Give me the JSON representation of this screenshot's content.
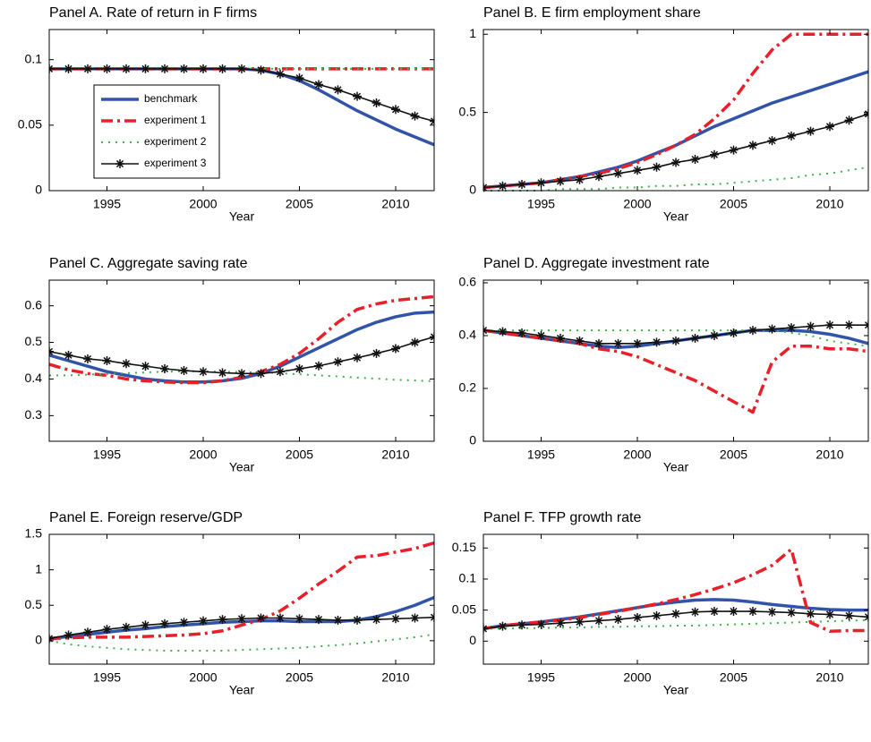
{
  "chart_data": [
    {
      "type": "line",
      "title": "Panel A. Rate of return in F firms",
      "xlabel": "Year",
      "x": [
        1992,
        1993,
        1994,
        1995,
        1996,
        1997,
        1998,
        1999,
        2000,
        2001,
        2002,
        2003,
        2004,
        2005,
        2006,
        2007,
        2008,
        2009,
        2010,
        2011,
        2012
      ],
      "xlim": [
        1992,
        2012
      ],
      "xticks": [
        1995,
        2000,
        2005,
        2010
      ],
      "ylim": [
        0,
        0.123
      ],
      "yticks": [
        0,
        0.05,
        0.1
      ],
      "legend": "west",
      "series": [
        {
          "name": "benchmark",
          "color": "#3153a8",
          "linestyle": "-",
          "values": [
            0.093,
            0.093,
            0.093,
            0.093,
            0.093,
            0.093,
            0.093,
            0.093,
            0.093,
            0.093,
            0.093,
            0.092,
            0.089,
            0.084,
            0.077,
            0.069,
            0.061,
            0.054,
            0.047,
            0.041,
            0.035
          ]
        },
        {
          "name": "experiment 1",
          "color": "#e8202a",
          "linestyle": "-.",
          "values": [
            0.093,
            0.093,
            0.093,
            0.093,
            0.093,
            0.093,
            0.093,
            0.093,
            0.093,
            0.093,
            0.093,
            0.093,
            0.093,
            0.093,
            0.093,
            0.093,
            0.093,
            0.093,
            0.093,
            0.093,
            0.093
          ]
        },
        {
          "name": "experiment 2",
          "color": "#3fb54a",
          "linestyle": ":",
          "values": [
            0.093,
            0.093,
            0.093,
            0.093,
            0.093,
            0.093,
            0.093,
            0.093,
            0.093,
            0.093,
            0.093,
            0.093,
            0.093,
            0.093,
            0.093,
            0.093,
            0.093,
            0.093,
            0.093,
            0.093,
            0.093
          ]
        },
        {
          "name": "experiment 3",
          "color": "#111111",
          "linestyle": "-",
          "marker": "*",
          "values": [
            0.093,
            0.093,
            0.093,
            0.093,
            0.093,
            0.093,
            0.093,
            0.093,
            0.093,
            0.093,
            0.093,
            0.092,
            0.089,
            0.086,
            0.081,
            0.077,
            0.072,
            0.067,
            0.062,
            0.057,
            0.053
          ]
        }
      ]
    },
    {
      "type": "line",
      "title": "Panel B. E firm employment share",
      "xlabel": "Year",
      "x": [
        1992,
        1993,
        1994,
        1995,
        1996,
        1997,
        1998,
        1999,
        2000,
        2001,
        2002,
        2003,
        2004,
        2005,
        2006,
        2007,
        2008,
        2009,
        2010,
        2011,
        2012
      ],
      "xlim": [
        1992,
        2012
      ],
      "xticks": [
        1995,
        2000,
        2005,
        2010
      ],
      "ylim": [
        0,
        1.03
      ],
      "yticks": [
        0,
        0.5,
        1
      ],
      "series": [
        {
          "color": "#3153a8",
          "linestyle": "-",
          "values": [
            0.02,
            0.03,
            0.04,
            0.05,
            0.07,
            0.09,
            0.12,
            0.15,
            0.19,
            0.24,
            0.29,
            0.35,
            0.41,
            0.46,
            0.51,
            0.56,
            0.6,
            0.64,
            0.68,
            0.72,
            0.76
          ]
        },
        {
          "color": "#e8202a",
          "linestyle": "-.",
          "values": [
            0.02,
            0.03,
            0.04,
            0.05,
            0.07,
            0.09,
            0.11,
            0.14,
            0.18,
            0.23,
            0.29,
            0.36,
            0.46,
            0.58,
            0.75,
            0.9,
            1,
            1,
            1,
            1,
            1
          ]
        },
        {
          "color": "#3fb54a",
          "linestyle": ":",
          "values": [
            0,
            0,
            0,
            0,
            0.01,
            0.01,
            0.01,
            0.02,
            0.02,
            0.03,
            0.03,
            0.04,
            0.04,
            0.05,
            0.06,
            0.07,
            0.08,
            0.1,
            0.11,
            0.13,
            0.15
          ]
        },
        {
          "color": "#111111",
          "linestyle": "-",
          "marker": "*",
          "values": [
            0.02,
            0.03,
            0.04,
            0.05,
            0.06,
            0.07,
            0.09,
            0.11,
            0.13,
            0.15,
            0.18,
            0.2,
            0.23,
            0.26,
            0.29,
            0.32,
            0.35,
            0.38,
            0.41,
            0.45,
            0.49
          ]
        }
      ]
    },
    {
      "type": "line",
      "title": "Panel C. Aggregate saving rate",
      "xlabel": "Year",
      "x": [
        1992,
        1993,
        1994,
        1995,
        1996,
        1997,
        1998,
        1999,
        2000,
        2001,
        2002,
        2003,
        2004,
        2005,
        2006,
        2007,
        2008,
        2009,
        2010,
        2011,
        2012
      ],
      "xlim": [
        1992,
        2012
      ],
      "xticks": [
        1995,
        2000,
        2005,
        2010
      ],
      "ylim": [
        0.23,
        0.67
      ],
      "yticks": [
        0.3,
        0.4,
        0.5,
        0.6
      ],
      "series": [
        {
          "color": "#3153a8",
          "linestyle": "-",
          "values": [
            0.465,
            0.45,
            0.435,
            0.42,
            0.41,
            0.4,
            0.395,
            0.392,
            0.392,
            0.395,
            0.402,
            0.415,
            0.435,
            0.46,
            0.485,
            0.51,
            0.535,
            0.555,
            0.57,
            0.58,
            0.583
          ]
        },
        {
          "color": "#e8202a",
          "linestyle": "-.",
          "values": [
            0.44,
            0.425,
            0.415,
            0.41,
            0.4,
            0.395,
            0.392,
            0.39,
            0.39,
            0.395,
            0.405,
            0.42,
            0.44,
            0.47,
            0.51,
            0.555,
            0.59,
            0.605,
            0.615,
            0.62,
            0.625
          ]
        },
        {
          "color": "#3fb54a",
          "linestyle": ":",
          "values": [
            0.41,
            0.41,
            0.412,
            0.414,
            0.416,
            0.418,
            0.42,
            0.421,
            0.421,
            0.42,
            0.419,
            0.418,
            0.416,
            0.413,
            0.41,
            0.407,
            0.404,
            0.401,
            0.398,
            0.396,
            0.394
          ]
        },
        {
          "color": "#111111",
          "linestyle": "-",
          "marker": "*",
          "values": [
            0.475,
            0.465,
            0.455,
            0.45,
            0.442,
            0.435,
            0.428,
            0.423,
            0.42,
            0.417,
            0.415,
            0.415,
            0.42,
            0.428,
            0.436,
            0.447,
            0.458,
            0.47,
            0.483,
            0.5,
            0.515
          ]
        }
      ]
    },
    {
      "type": "line",
      "title": "Panel D. Aggregate investment rate",
      "xlabel": "Year",
      "x": [
        1992,
        1993,
        1994,
        1995,
        1996,
        1997,
        1998,
        1999,
        2000,
        2001,
        2002,
        2003,
        2004,
        2005,
        2006,
        2007,
        2008,
        2009,
        2010,
        2011,
        2012
      ],
      "xlim": [
        1992,
        2012
      ],
      "xticks": [
        1995,
        2000,
        2005,
        2010
      ],
      "ylim": [
        0,
        0.61
      ],
      "yticks": [
        0,
        0.2,
        0.4,
        0.6
      ],
      "series": [
        {
          "color": "#3153a8",
          "linestyle": "-",
          "values": [
            0.42,
            0.41,
            0.4,
            0.39,
            0.38,
            0.37,
            0.36,
            0.355,
            0.36,
            0.37,
            0.38,
            0.39,
            0.4,
            0.41,
            0.42,
            0.42,
            0.42,
            0.415,
            0.405,
            0.39,
            0.37
          ]
        },
        {
          "color": "#e8202a",
          "linestyle": "-.",
          "values": [
            0.42,
            0.41,
            0.4,
            0.39,
            0.38,
            0.37,
            0.35,
            0.34,
            0.32,
            0.29,
            0.26,
            0.23,
            0.19,
            0.15,
            0.11,
            0.3,
            0.36,
            0.36,
            0.35,
            0.35,
            0.34
          ]
        },
        {
          "color": "#3fb54a",
          "linestyle": ":",
          "values": [
            0.42,
            0.42,
            0.42,
            0.42,
            0.42,
            0.42,
            0.42,
            0.42,
            0.42,
            0.42,
            0.42,
            0.42,
            0.42,
            0.42,
            0.42,
            0.42,
            0.41,
            0.4,
            0.38,
            0.37,
            0.36
          ]
        },
        {
          "color": "#111111",
          "linestyle": "-",
          "marker": "*",
          "values": [
            0.42,
            0.415,
            0.41,
            0.4,
            0.39,
            0.38,
            0.37,
            0.37,
            0.37,
            0.375,
            0.38,
            0.39,
            0.4,
            0.41,
            0.42,
            0.425,
            0.43,
            0.435,
            0.44,
            0.44,
            0.44
          ]
        }
      ]
    },
    {
      "type": "line",
      "title": "Panel E. Foreign reserve/GDP",
      "xlabel": "Year",
      "x": [
        1992,
        1993,
        1994,
        1995,
        1996,
        1997,
        1998,
        1999,
        2000,
        2001,
        2002,
        2003,
        2004,
        2005,
        2006,
        2007,
        2008,
        2009,
        2010,
        2011,
        2012
      ],
      "xlim": [
        1992,
        2012
      ],
      "xticks": [
        1995,
        2000,
        2005,
        2010
      ],
      "ylim": [
        -0.33,
        1.5
      ],
      "yticks": [
        0,
        0.5,
        1,
        1.5
      ],
      "series": [
        {
          "color": "#3153a8",
          "linestyle": "-",
          "values": [
            0.03,
            0.06,
            0.09,
            0.12,
            0.15,
            0.17,
            0.2,
            0.22,
            0.24,
            0.26,
            0.27,
            0.28,
            0.28,
            0.27,
            0.27,
            0.27,
            0.29,
            0.34,
            0.41,
            0.5,
            0.61
          ]
        },
        {
          "color": "#e8202a",
          "linestyle": "-.",
          "values": [
            0.03,
            0.04,
            0.05,
            0.05,
            0.05,
            0.06,
            0.07,
            0.08,
            0.1,
            0.14,
            0.22,
            0.3,
            0.42,
            0.6,
            0.8,
            0.98,
            1.18,
            1.2,
            1.25,
            1.3,
            1.38
          ]
        },
        {
          "color": "#3fb54a",
          "linestyle": ":",
          "values": [
            0,
            -0.05,
            -0.08,
            -0.1,
            -0.12,
            -0.13,
            -0.14,
            -0.14,
            -0.14,
            -0.14,
            -0.13,
            -0.12,
            -0.11,
            -0.1,
            -0.08,
            -0.06,
            -0.04,
            -0.01,
            0.02,
            0.05,
            0.09
          ]
        },
        {
          "color": "#111111",
          "linestyle": "-",
          "marker": "*",
          "values": [
            0.03,
            0.08,
            0.12,
            0.16,
            0.19,
            0.22,
            0.24,
            0.26,
            0.28,
            0.3,
            0.31,
            0.32,
            0.32,
            0.31,
            0.3,
            0.29,
            0.29,
            0.3,
            0.31,
            0.32,
            0.33
          ]
        }
      ]
    },
    {
      "type": "line",
      "title": "Panel F. TFP growth rate",
      "xlabel": "Year",
      "x": [
        1992,
        1993,
        1994,
        1995,
        1996,
        1997,
        1998,
        1999,
        2000,
        2001,
        2002,
        2003,
        2004,
        2005,
        2006,
        2007,
        2008,
        2009,
        2010,
        2011,
        2012
      ],
      "xlim": [
        1992,
        2012
      ],
      "xticks": [
        1995,
        2000,
        2005,
        2010
      ],
      "ylim": [
        -0.037,
        0.172
      ],
      "yticks": [
        0,
        0.05,
        0.1,
        0.15
      ],
      "series": [
        {
          "color": "#3153a8",
          "linestyle": "-",
          "values": [
            0.02,
            0.025,
            0.028,
            0.031,
            0.035,
            0.039,
            0.044,
            0.049,
            0.054,
            0.059,
            0.063,
            0.066,
            0.067,
            0.066,
            0.063,
            0.059,
            0.056,
            0.053,
            0.051,
            0.05,
            0.05
          ]
        },
        {
          "color": "#e8202a",
          "linestyle": "-.",
          "values": [
            0.02,
            0.025,
            0.028,
            0.031,
            0.034,
            0.038,
            0.043,
            0.048,
            0.054,
            0.06,
            0.067,
            0.075,
            0.084,
            0.094,
            0.107,
            0.122,
            0.148,
            0.03,
            0.016,
            0.017,
            0.017
          ]
        },
        {
          "color": "#3fb54a",
          "linestyle": ":",
          "values": [
            0.02,
            0.02,
            0.021,
            0.021,
            0.022,
            0.022,
            0.023,
            0.023,
            0.024,
            0.024,
            0.025,
            0.025,
            0.026,
            0.027,
            0.028,
            0.029,
            0.03,
            0.031,
            0.032,
            0.033,
            0.034
          ]
        },
        {
          "color": "#111111",
          "linestyle": "-",
          "marker": "*",
          "values": [
            0.02,
            0.024,
            0.026,
            0.027,
            0.029,
            0.031,
            0.033,
            0.035,
            0.038,
            0.041,
            0.044,
            0.047,
            0.048,
            0.048,
            0.048,
            0.047,
            0.046,
            0.044,
            0.043,
            0.041,
            0.039
          ]
        }
      ]
    }
  ]
}
